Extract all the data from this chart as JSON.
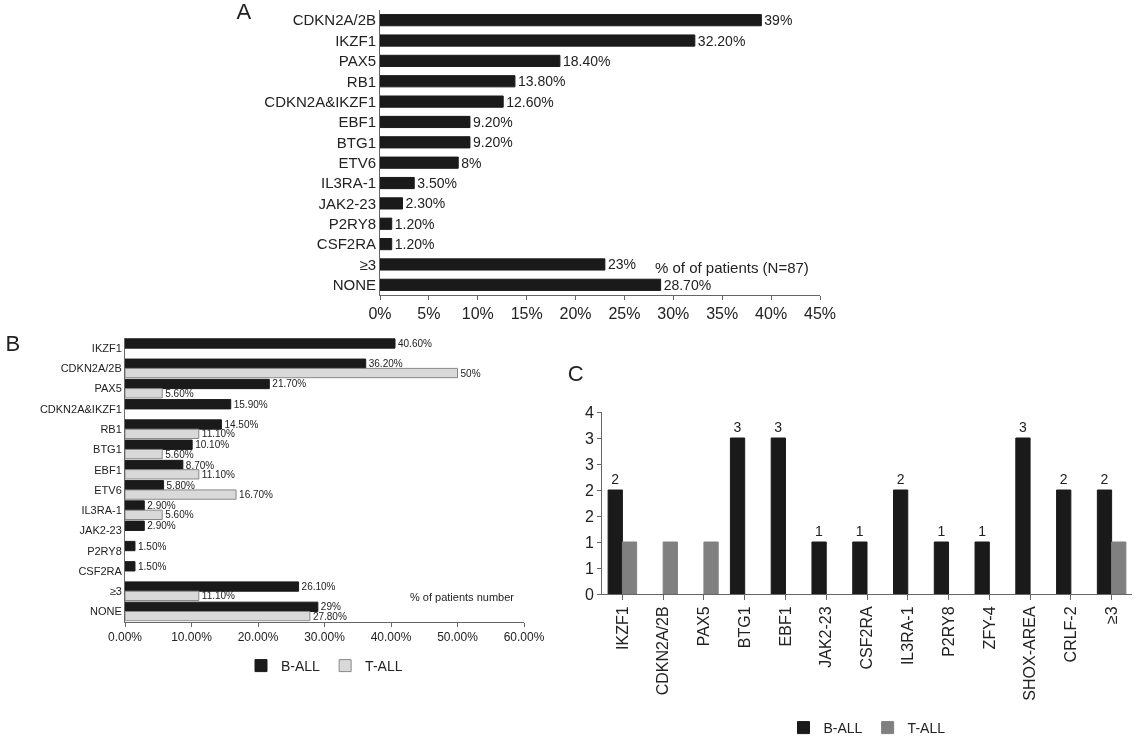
{
  "chart_data": [
    {
      "type": "bar",
      "title": "A",
      "orientation": "horizontal",
      "categories": [
        "CDKN2A/2B",
        "IKZF1",
        "PAX5",
        "RB1",
        "CDKN2A&IKZF1",
        "EBF1",
        "BTG1",
        "ETV6",
        "IL3RA-1",
        "JAK2-23",
        "P2RY8",
        "CSF2RA",
        "≥3",
        "NONE"
      ],
      "values": [
        39,
        32.2,
        18.4,
        13.8,
        12.6,
        9.2,
        9.2,
        8,
        3.5,
        2.3,
        1.2,
        1.2,
        23,
        28.7
      ],
      "value_labels": [
        "39%",
        "32.20%",
        "18.40%",
        "13.80%",
        "12.60%",
        "9.20%",
        "9.20%",
        "8%",
        "3.50%",
        "2.30%",
        "1.20%",
        "1.20%",
        "23%",
        "28.70%"
      ],
      "color": "#1a1a1a",
      "xlim": [
        0,
        45
      ],
      "xticks": [
        {
          "value": 0,
          "label": "0%"
        },
        {
          "value": 5,
          "label": "5%"
        },
        {
          "value": 10,
          "label": "10%"
        },
        {
          "value": 15,
          "label": "15%"
        },
        {
          "value": 20,
          "label": "20%"
        },
        {
          "value": 25,
          "label": "25%"
        },
        {
          "value": 30,
          "label": "30%"
        },
        {
          "value": 35,
          "label": "35%"
        },
        {
          "value": 40,
          "label": "40%"
        },
        {
          "value": 45,
          "label": "45%"
        }
      ],
      "annotations": [
        "% of of patients (N=87)"
      ]
    },
    {
      "type": "bar",
      "title": "B",
      "orientation": "horizontal",
      "categories": [
        "IKZF1",
        "CDKN2A/2B",
        "PAX5",
        "CDKN2A&IKZF1",
        "RB1",
        "BTG1",
        "EBF1",
        "ETV6",
        "IL3RA-1",
        "JAK2-23",
        "P2RY8",
        "CSF2RA",
        "≥3",
        "NONE"
      ],
      "series": [
        {
          "name": "B-ALL",
          "color": "#1a1a1a",
          "values": [
            40.6,
            36.2,
            21.7,
            15.9,
            14.5,
            10.1,
            8.7,
            5.8,
            2.9,
            2.9,
            1.5,
            1.5,
            26.1,
            29
          ],
          "value_labels": [
            "40.60%",
            "36.20%",
            "21.70%",
            "15.90%",
            "14.50%",
            "10.10%",
            "8.70%",
            "5.80%",
            "2.90%",
            "2.90%",
            "1.50%",
            "1.50%",
            "26.10%",
            "29%"
          ]
        },
        {
          "name": "T-ALL",
          "color": "#d9d9d9",
          "values": [
            null,
            50,
            5.6,
            null,
            11.1,
            5.6,
            11.1,
            16.7,
            5.6,
            null,
            null,
            null,
            11.1,
            27.8
          ],
          "value_labels": [
            null,
            "50%",
            "5.60%",
            null,
            "11.10%",
            "5.60%",
            "11.10%",
            "16.70%",
            "5.60%",
            null,
            null,
            null,
            "11.10%",
            "27.80%"
          ]
        }
      ],
      "xlim": [
        0,
        60
      ],
      "xticks": [
        {
          "value": 0,
          "label": "0.00%"
        },
        {
          "value": 10,
          "label": "10.00%"
        },
        {
          "value": 20,
          "label": "20.00%"
        },
        {
          "value": 30,
          "label": "30.00%"
        },
        {
          "value": 40,
          "label": "40.00%"
        },
        {
          "value": 50,
          "label": "50.00%"
        },
        {
          "value": 60,
          "label": "60.00%"
        }
      ],
      "legend": "bottom",
      "annotations": [
        "% of patients number"
      ]
    },
    {
      "type": "bar",
      "title": "C",
      "categories": [
        "IKZF1",
        "CDKN2A/2B",
        "PAX5",
        "BTG1",
        "EBF1",
        "JAK2-23",
        "CSF2RA",
        "IL3RA-1",
        "P2RY8",
        "ZFY-4",
        "SHOX-AREA",
        "CRLF-2",
        "≥3"
      ],
      "series": [
        {
          "name": "B-ALL",
          "color": "#1a1a1a",
          "values": [
            2,
            null,
            null,
            3,
            3,
            1,
            1,
            2,
            1,
            1,
            3,
            2,
            2
          ],
          "value_labels": [
            "2",
            null,
            null,
            "3",
            "3",
            "1",
            "1",
            "2",
            "1",
            "1",
            "3",
            "2",
            "2"
          ]
        },
        {
          "name": "T-ALL",
          "color": "#808080",
          "values": [
            1,
            1,
            1,
            null,
            null,
            null,
            null,
            null,
            null,
            null,
            null,
            null,
            1
          ]
        }
      ],
      "ylim": [
        0,
        3.5
      ],
      "yticks": [
        0,
        {
          "value": 0.5,
          "label": "1"
        },
        1,
        {
          "value": 1.5,
          "label": "2"
        },
        2,
        {
          "value": 2.5,
          "label": "3"
        },
        3,
        {
          "value": 3.5,
          "label": "4"
        }
      ],
      "legend": "bottom"
    }
  ]
}
